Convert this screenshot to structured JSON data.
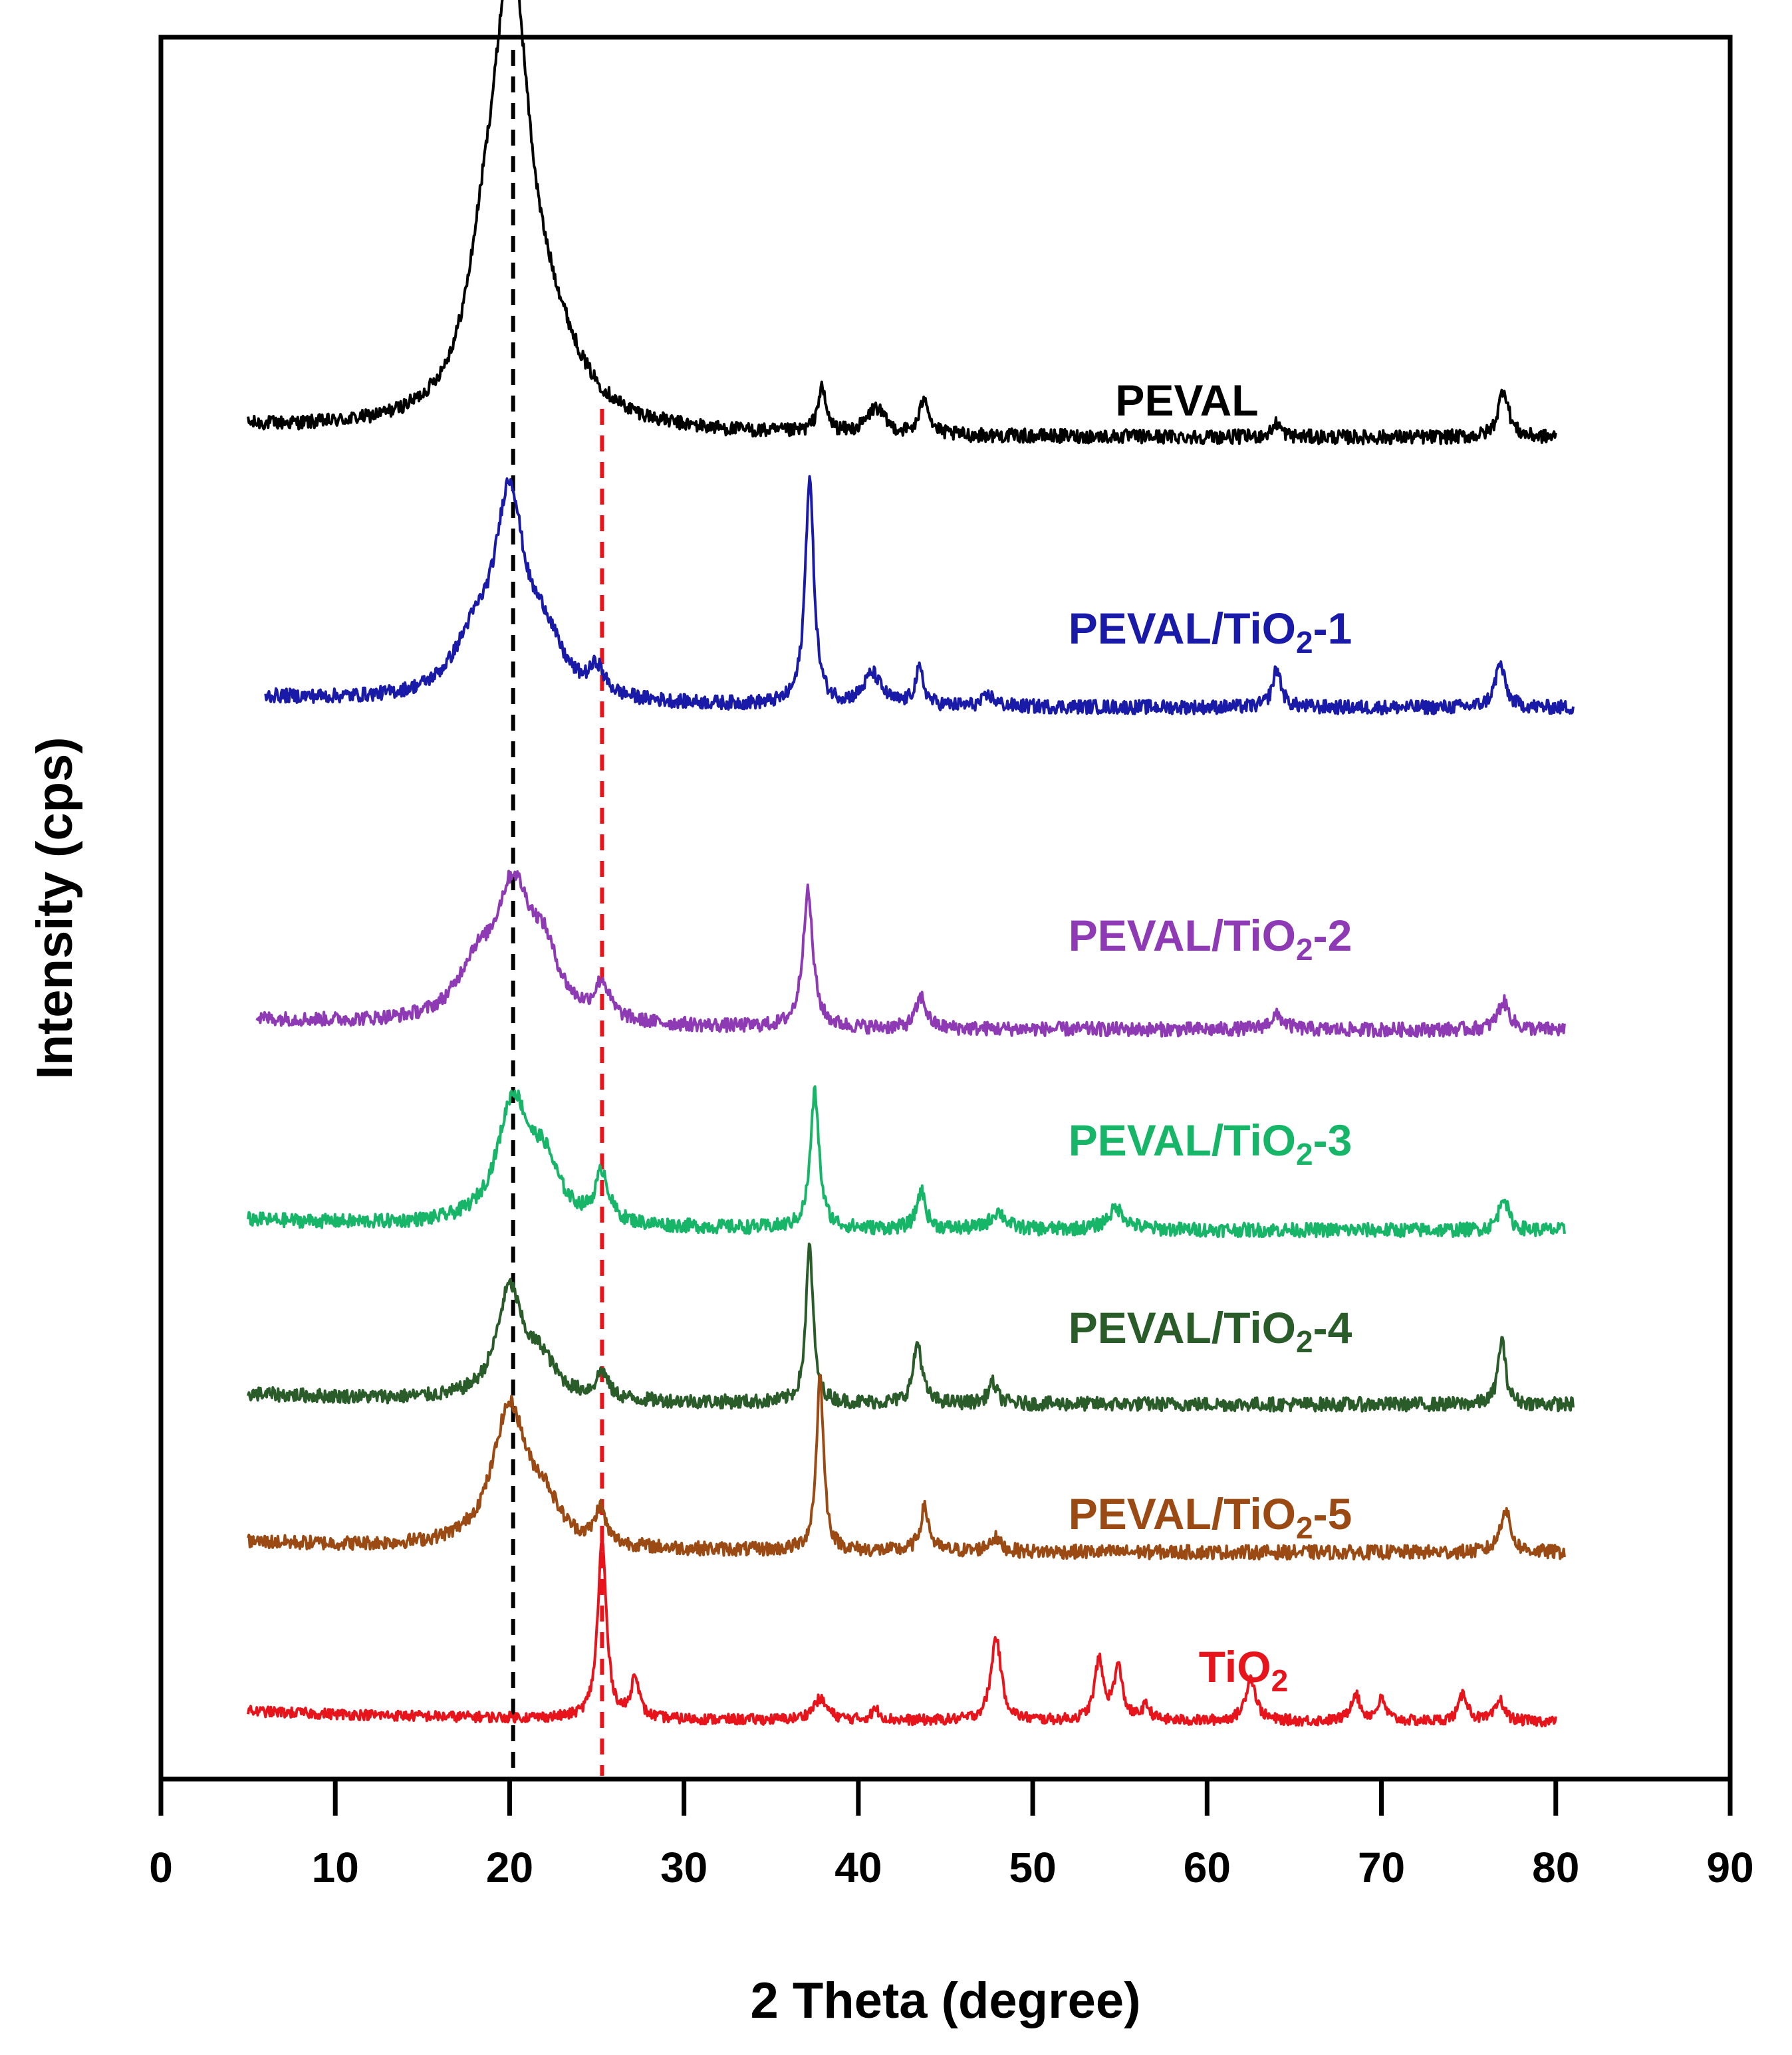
{
  "chart_data": {
    "type": "line",
    "title": "",
    "xlabel": "2 Theta (degree)",
    "ylabel": "Intensity (cps)",
    "xlim": [
      0,
      90
    ],
    "xticks": [
      0,
      10,
      20,
      30,
      40,
      50,
      60,
      70,
      80,
      90
    ],
    "y_ticks_shown": false,
    "reference_lines": [
      {
        "x": 20.2,
        "color": "#000000",
        "style": "dashed",
        "name": "black-dashed-reference"
      },
      {
        "x": 25.3,
        "color": "#e8141b",
        "style": "dashed",
        "name": "red-dashed-reference"
      }
    ],
    "series": [
      {
        "name": "PEVAL",
        "label": {
          "main": "PEVAL",
          "sub": "",
          "tail": ""
        },
        "color": "#000000",
        "x_range": [
          5,
          80
        ],
        "baseline": 0.77,
        "noise": 0.004,
        "peaks": [
          {
            "center": 20.1,
            "height": 0.245,
            "width": 1.3
          },
          {
            "center": 18.5,
            "height": 0.05,
            "width": 1.2
          },
          {
            "center": 22.5,
            "height": 0.035,
            "width": 2.0
          },
          {
            "center": 37.9,
            "height": 0.025,
            "width": 0.3
          },
          {
            "center": 41.0,
            "height": 0.015,
            "width": 0.6
          },
          {
            "center": 43.8,
            "height": 0.022,
            "width": 0.3
          },
          {
            "center": 64.0,
            "height": 0.008,
            "width": 0.3
          },
          {
            "center": 77.0,
            "height": 0.028,
            "width": 0.35
          }
        ]
      },
      {
        "name": "PEVAL/TiO2-1",
        "label": {
          "main": "PEVAL/TiO",
          "sub": "2",
          "tail": "-1"
        },
        "color": "#1a1aa8",
        "x_range": [
          6,
          81
        ],
        "baseline": 0.615,
        "noise": 0.004,
        "peaks": [
          {
            "center": 20.0,
            "height": 0.11,
            "width": 1.0
          },
          {
            "center": 18.0,
            "height": 0.03,
            "width": 1.5
          },
          {
            "center": 22.0,
            "height": 0.03,
            "width": 1.2
          },
          {
            "center": 25.0,
            "height": 0.015,
            "width": 0.5
          },
          {
            "center": 37.2,
            "height": 0.13,
            "width": 0.3
          },
          {
            "center": 40.8,
            "height": 0.018,
            "width": 0.6
          },
          {
            "center": 43.5,
            "height": 0.02,
            "width": 0.3
          },
          {
            "center": 47.5,
            "height": 0.006,
            "width": 0.4
          },
          {
            "center": 64.0,
            "height": 0.022,
            "width": 0.3
          },
          {
            "center": 76.8,
            "height": 0.025,
            "width": 0.35
          }
        ]
      },
      {
        "name": "PEVAL/TiO2-2",
        "label": {
          "main": "PEVAL/TiO",
          "sub": "2",
          "tail": "-2"
        },
        "color": "#8e3ab5",
        "x_range": [
          5.5,
          80.5
        ],
        "baseline": 0.43,
        "noise": 0.004,
        "peaks": [
          {
            "center": 20.2,
            "height": 0.075,
            "width": 1.3
          },
          {
            "center": 18.0,
            "height": 0.025,
            "width": 1.2
          },
          {
            "center": 22.0,
            "height": 0.03,
            "width": 1.0
          },
          {
            "center": 25.3,
            "height": 0.02,
            "width": 0.5
          },
          {
            "center": 37.1,
            "height": 0.078,
            "width": 0.35
          },
          {
            "center": 43.6,
            "height": 0.018,
            "width": 0.35
          },
          {
            "center": 64.0,
            "height": 0.008,
            "width": 0.5
          },
          {
            "center": 77.0,
            "height": 0.016,
            "width": 0.4
          }
        ]
      },
      {
        "name": "PEVAL/TiO2-3",
        "label": {
          "main": "PEVAL/TiO",
          "sub": "2",
          "tail": "-3"
        },
        "color": "#17b568",
        "x_range": [
          5,
          80.5
        ],
        "baseline": 0.315,
        "noise": 0.004,
        "peaks": [
          {
            "center": 20.2,
            "height": 0.07,
            "width": 1.1
          },
          {
            "center": 22.0,
            "height": 0.03,
            "width": 1.0
          },
          {
            "center": 25.3,
            "height": 0.028,
            "width": 0.45
          },
          {
            "center": 37.5,
            "height": 0.078,
            "width": 0.3
          },
          {
            "center": 43.6,
            "height": 0.022,
            "width": 0.3
          },
          {
            "center": 48.0,
            "height": 0.01,
            "width": 0.5
          },
          {
            "center": 54.8,
            "height": 0.012,
            "width": 0.6
          },
          {
            "center": 77.0,
            "height": 0.02,
            "width": 0.3
          }
        ]
      },
      {
        "name": "PEVAL/TiO2-4",
        "label": {
          "main": "PEVAL/TiO",
          "sub": "2",
          "tail": "-4"
        },
        "color": "#2a5c2a",
        "x_range": [
          5,
          81
        ],
        "baseline": 0.215,
        "noise": 0.004,
        "peaks": [
          {
            "center": 20.0,
            "height": 0.062,
            "width": 0.9
          },
          {
            "center": 21.8,
            "height": 0.02,
            "width": 1.0
          },
          {
            "center": 25.3,
            "height": 0.015,
            "width": 0.4
          },
          {
            "center": 37.2,
            "height": 0.09,
            "width": 0.25
          },
          {
            "center": 43.4,
            "height": 0.035,
            "width": 0.3
          },
          {
            "center": 47.7,
            "height": 0.012,
            "width": 0.3
          },
          {
            "center": 76.9,
            "height": 0.038,
            "width": 0.25
          }
        ]
      },
      {
        "name": "PEVAL/TiO2-5",
        "label": {
          "main": "PEVAL/TiO",
          "sub": "2",
          "tail": "-5"
        },
        "color": "#9a4a12",
        "x_range": [
          5,
          80.5
        ],
        "baseline": 0.13,
        "noise": 0.004,
        "peaks": [
          {
            "center": 20.0,
            "height": 0.08,
            "width": 1.2
          },
          {
            "center": 22.0,
            "height": 0.02,
            "width": 1.0
          },
          {
            "center": 25.2,
            "height": 0.02,
            "width": 0.35
          },
          {
            "center": 37.8,
            "height": 0.1,
            "width": 0.25
          },
          {
            "center": 43.8,
            "height": 0.025,
            "width": 0.3
          },
          {
            "center": 47.8,
            "height": 0.008,
            "width": 0.4
          },
          {
            "center": 77.1,
            "height": 0.025,
            "width": 0.35
          }
        ]
      },
      {
        "name": "TiO2",
        "label": {
          "main": "TiO",
          "sub": "2",
          "tail": ""
        },
        "color": "#e8141b",
        "x_range": [
          5,
          80
        ],
        "baseline": 0.033,
        "noise": 0.003,
        "peaks": [
          {
            "center": 25.3,
            "height": 0.102,
            "width": 0.3
          },
          {
            "center": 27.2,
            "height": 0.025,
            "width": 0.25
          },
          {
            "center": 37.8,
            "height": 0.012,
            "width": 0.5
          },
          {
            "center": 41.0,
            "height": 0.006,
            "width": 0.3
          },
          {
            "center": 47.9,
            "height": 0.048,
            "width": 0.35
          },
          {
            "center": 53.8,
            "height": 0.034,
            "width": 0.3
          },
          {
            "center": 54.9,
            "height": 0.03,
            "width": 0.3
          },
          {
            "center": 56.5,
            "height": 0.008,
            "width": 0.3
          },
          {
            "center": 62.5,
            "height": 0.025,
            "width": 0.35
          },
          {
            "center": 68.5,
            "height": 0.016,
            "width": 0.3
          },
          {
            "center": 70.0,
            "height": 0.012,
            "width": 0.3
          },
          {
            "center": 74.7,
            "height": 0.016,
            "width": 0.3
          },
          {
            "center": 76.8,
            "height": 0.012,
            "width": 0.3
          }
        ]
      }
    ]
  }
}
